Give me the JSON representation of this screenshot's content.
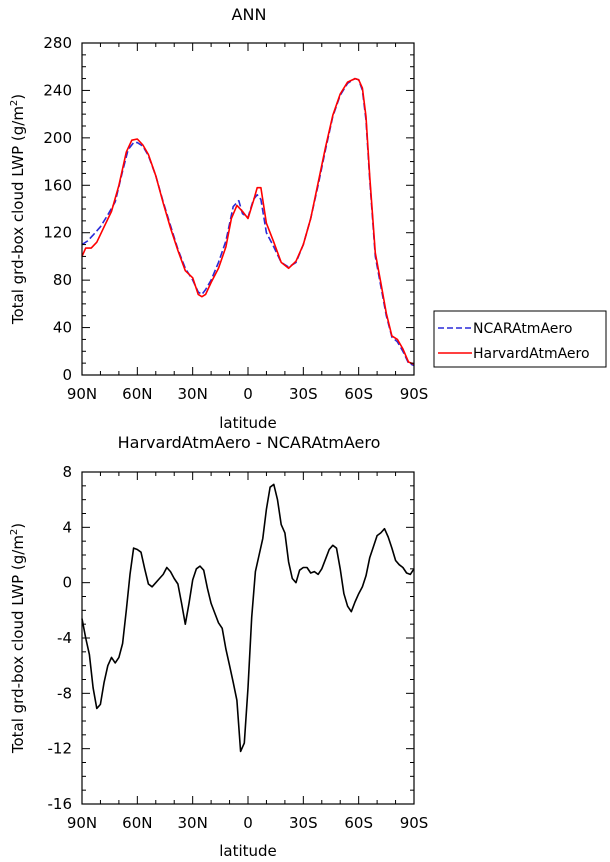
{
  "chart_data": [
    {
      "type": "line",
      "title": "ANN",
      "xlabel": "latitude",
      "ylabel": "Total grd-box cloud LWP (g/m",
      "ylabel_sup": "2",
      "ylabel_end": ")",
      "xlim": [
        90,
        -90
      ],
      "ylim": [
        0,
        280
      ],
      "x_ticks": [
        90,
        60,
        30,
        0,
        -30,
        -60,
        -90
      ],
      "x_tick_labels": [
        "90N",
        "60N",
        "30N",
        "0",
        "30S",
        "60S",
        "90S"
      ],
      "y_ticks": [
        0,
        40,
        80,
        120,
        160,
        200,
        240,
        280
      ],
      "y_tick_labels": [
        "0",
        "40",
        "80",
        "120",
        "160",
        "200",
        "240",
        "280"
      ],
      "legend_position": "right",
      "series": [
        {
          "name": "NCARAtmAero",
          "color": "#2a2ad8",
          "dash": "dashed",
          "x": [
            90,
            87,
            84,
            80,
            76,
            72,
            68,
            65,
            62,
            60,
            57,
            54,
            50,
            46,
            42,
            38,
            34,
            30,
            27,
            25,
            23,
            20,
            16,
            12,
            8,
            5,
            3,
            0,
            -3,
            -5,
            -7,
            -10,
            -14,
            -18,
            -22,
            -26,
            -30,
            -34,
            -38,
            -42,
            -46,
            -50,
            -54,
            -58,
            -60,
            -62,
            -64,
            -66,
            -69,
            -72,
            -75,
            -78,
            -81,
            -84,
            -87,
            -90
          ],
          "y": [
            110,
            113,
            118,
            125,
            135,
            146,
            172,
            190,
            196,
            196,
            193,
            185,
            168,
            146,
            126,
            106,
            90,
            80,
            70,
            68,
            72,
            80,
            95,
            113,
            142,
            147,
            136,
            133,
            148,
            152,
            148,
            120,
            108,
            95,
            91,
            95,
            110,
            132,
            160,
            190,
            218,
            236,
            246,
            250,
            249,
            240,
            215,
            165,
            100,
            75,
            50,
            32,
            28,
            20,
            10,
            8
          ]
        },
        {
          "name": "HarvardAtmAero",
          "color": "#ff0000",
          "dash": "solid",
          "x": [
            90,
            88,
            85,
            82,
            78,
            74,
            70,
            66,
            63,
            60,
            57,
            54,
            50,
            46,
            42,
            38,
            34,
            30,
            27,
            25,
            23,
            20,
            16,
            12,
            9,
            6,
            3,
            0,
            -3,
            -5,
            -7,
            -10,
            -14,
            -18,
            -22,
            -26,
            -30,
            -34,
            -38,
            -42,
            -46,
            -50,
            -54,
            -58,
            -60,
            -62,
            -64,
            -66,
            -69,
            -72,
            -75,
            -78,
            -81,
            -84,
            -87,
            -90
          ],
          "y": [
            100,
            107,
            107,
            112,
            125,
            138,
            160,
            188,
            198,
            199,
            194,
            186,
            168,
            145,
            124,
            105,
            88,
            82,
            68,
            66,
            68,
            78,
            90,
            108,
            132,
            143,
            138,
            132,
            147,
            158,
            158,
            128,
            112,
            95,
            90,
            96,
            110,
            132,
            162,
            192,
            219,
            237,
            247,
            250,
            249,
            242,
            218,
            168,
            103,
            78,
            52,
            33,
            30,
            22,
            11,
            9
          ]
        }
      ]
    },
    {
      "type": "line",
      "title": "HarvardAtmAero - NCARAtmAero",
      "xlabel": "latitude",
      "ylabel": "Total grd-box cloud LWP (g/m",
      "ylabel_sup": "2",
      "ylabel_end": ")",
      "xlim": [
        90,
        -90
      ],
      "ylim": [
        -16,
        8
      ],
      "x_ticks": [
        90,
        60,
        30,
        0,
        -30,
        -60,
        -90
      ],
      "x_tick_labels": [
        "90N",
        "60N",
        "30N",
        "0",
        "30S",
        "60S",
        "90S"
      ],
      "y_ticks": [
        -16,
        -12,
        -8,
        -4,
        0,
        4,
        8
      ],
      "y_tick_labels": [
        "-16",
        "-12",
        "-8",
        "-4",
        "0",
        "4",
        "8"
      ],
      "series": [
        {
          "color": "#000000",
          "dash": "solid",
          "x": [
            90,
            88,
            86,
            84,
            82,
            80,
            78,
            76,
            74,
            72,
            70,
            68,
            66,
            64,
            62,
            60,
            58,
            56,
            54,
            52,
            50,
            48,
            46,
            44,
            42,
            40,
            38,
            36,
            34,
            32,
            30,
            28,
            26,
            24,
            22,
            20,
            18,
            16,
            14,
            12,
            10,
            8,
            6,
            4,
            2,
            0,
            -2,
            -4,
            -6,
            -8,
            -10,
            -12,
            -14,
            -16,
            -18,
            -20,
            -22,
            -24,
            -26,
            -28,
            -30,
            -32,
            -34,
            -36,
            -38,
            -40,
            -42,
            -44,
            -46,
            -48,
            -50,
            -52,
            -54,
            -56,
            -58,
            -60,
            -62,
            -64,
            -66,
            -68,
            -70,
            -72,
            -74,
            -76,
            -78,
            -80,
            -82,
            -84,
            -86,
            -88,
            -90
          ],
          "y": [
            -2.6,
            -4,
            -5.2,
            -7.6,
            -9.1,
            -8.8,
            -7.2,
            -6,
            -5.4,
            -5.8,
            -5.4,
            -4.4,
            -2,
            0.6,
            2.5,
            2.4,
            2.2,
            1,
            -0.1,
            -0.3,
            0,
            0.3,
            0.6,
            1.1,
            0.8,
            0.3,
            -0.1,
            -1.5,
            -3,
            -1.5,
            0.2,
            1,
            1.2,
            0.9,
            -0.4,
            -1.5,
            -2.2,
            -2.9,
            -3.3,
            -4.8,
            -6,
            -7.2,
            -8.5,
            -12.2,
            -11.6,
            -7.6,
            -2.5,
            0.8,
            2,
            3.2,
            5.3,
            6.9,
            7.1,
            6,
            4.2,
            3.6,
            1.5,
            0.3,
            0,
            0.9,
            1.1,
            1.1,
            0.7,
            0.8,
            0.6,
            1,
            1.7,
            2.4,
            2.7,
            2.5,
            1,
            -0.8,
            -1.7,
            -2.1,
            -1.4,
            -0.8,
            -0.3,
            0.5,
            1.8,
            2.6,
            3.4,
            3.6,
            3.9,
            3.3,
            2.5,
            1.6,
            1.3,
            1.1,
            0.7,
            0.6,
            1
          ]
        }
      ]
    }
  ]
}
